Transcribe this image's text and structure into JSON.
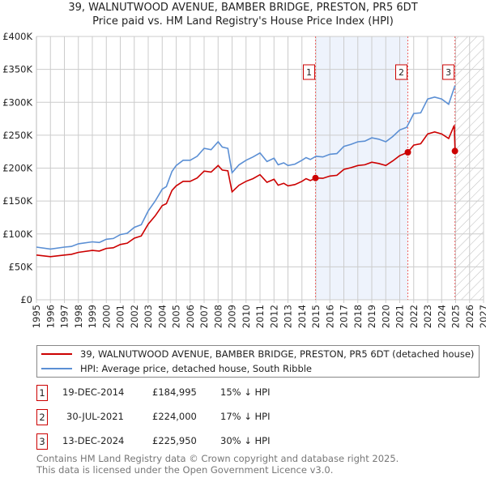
{
  "chart_data": {
    "type": "line",
    "title": "39, WALNUTWOOD AVENUE, BAMBER BRIDGE, PRESTON, PR5 6DT",
    "subtitle": "Price paid vs. HM Land Registry's House Price Index (HPI)",
    "xlim": [
      1995,
      2027
    ],
    "ylim": [
      0,
      400000
    ],
    "x_ticks": [
      "1995",
      "1996",
      "1997",
      "1998",
      "1999",
      "2000",
      "2001",
      "2002",
      "2003",
      "2004",
      "2005",
      "2006",
      "2007",
      "2008",
      "2009",
      "2010",
      "2011",
      "2012",
      "2013",
      "2014",
      "2015",
      "2016",
      "2017",
      "2018",
      "2019",
      "2020",
      "2021",
      "2022",
      "2023",
      "2024",
      "2025",
      "2026",
      "2027"
    ],
    "y_ticks": [
      {
        "v": 0,
        "label": "£0"
      },
      {
        "v": 50000,
        "label": "£50K"
      },
      {
        "v": 100000,
        "label": "£100K"
      },
      {
        "v": 150000,
        "label": "£150K"
      },
      {
        "v": 200000,
        "label": "£200K"
      },
      {
        "v": 250000,
        "label": "£250K"
      },
      {
        "v": 300000,
        "label": "£300K"
      },
      {
        "v": 350000,
        "label": "£350K"
      },
      {
        "v": 400000,
        "label": "£400K"
      }
    ],
    "grid": true,
    "shaded_range": [
      2014.97,
      2021.58
    ],
    "forecast_hatch_from": 2025.0,
    "series": [
      {
        "name": "39, WALNUTWOOD AVENUE, BAMBER BRIDGE, PRESTON, PR5 6DT (detached house)",
        "color": "#cc0000",
        "points": [
          [
            1995,
            68
          ],
          [
            1996,
            65.5
          ],
          [
            1997,
            68
          ],
          [
            1997.5,
            69
          ],
          [
            1998,
            72
          ],
          [
            1999,
            75
          ],
          [
            1999.5,
            74
          ],
          [
            2000,
            78
          ],
          [
            2000.5,
            79
          ],
          [
            2001,
            84
          ],
          [
            2001.5,
            86
          ],
          [
            2002,
            93.5
          ],
          [
            2002.5,
            97
          ],
          [
            2003,
            115
          ],
          [
            2003.5,
            127.5
          ],
          [
            2004,
            143
          ],
          [
            2004.3,
            146
          ],
          [
            2004.7,
            166
          ],
          [
            2005,
            173
          ],
          [
            2005.5,
            180
          ],
          [
            2006,
            180
          ],
          [
            2006.5,
            185
          ],
          [
            2007,
            195.5
          ],
          [
            2007.5,
            194
          ],
          [
            2008,
            204
          ],
          [
            2008.3,
            197
          ],
          [
            2008.7,
            196
          ],
          [
            2009,
            164
          ],
          [
            2009.5,
            174
          ],
          [
            2010,
            180
          ],
          [
            2010.5,
            184
          ],
          [
            2011,
            190
          ],
          [
            2011.5,
            178.5
          ],
          [
            2012,
            183
          ],
          [
            2012.3,
            174
          ],
          [
            2012.7,
            177
          ],
          [
            2013,
            173
          ],
          [
            2013.5,
            175
          ],
          [
            2014,
            180
          ],
          [
            2014.3,
            184
          ],
          [
            2014.6,
            181
          ],
          [
            2015,
            185
          ],
          [
            2015.5,
            184.5
          ],
          [
            2016,
            188
          ],
          [
            2016.5,
            189
          ],
          [
            2017,
            198
          ],
          [
            2017.5,
            200.6
          ],
          [
            2018,
            204
          ],
          [
            2018.5,
            205
          ],
          [
            2019,
            209
          ],
          [
            2019.5,
            207
          ],
          [
            2020,
            204
          ],
          [
            2020.5,
            211
          ],
          [
            2021,
            219
          ],
          [
            2021.58,
            224
          ],
          [
            2022,
            235
          ],
          [
            2022.5,
            237
          ],
          [
            2023,
            252
          ],
          [
            2023.5,
            255
          ],
          [
            2024,
            252
          ],
          [
            2024.5,
            245
          ],
          [
            2024.9,
            265
          ],
          [
            2024.96,
            226
          ]
        ]
      },
      {
        "name": "HPI: Average price, detached house, South Ribble",
        "color": "#5b8fd4",
        "points": [
          [
            1995,
            80
          ],
          [
            1996,
            77
          ],
          [
            1997,
            80
          ],
          [
            1997.5,
            81
          ],
          [
            1998,
            85
          ],
          [
            1999,
            88
          ],
          [
            1999.5,
            87
          ],
          [
            2000,
            92
          ],
          [
            2000.5,
            93
          ],
          [
            2001,
            99
          ],
          [
            2001.5,
            101
          ],
          [
            2002,
            110
          ],
          [
            2002.5,
            114
          ],
          [
            2003,
            135
          ],
          [
            2003.5,
            150
          ],
          [
            2004,
            168
          ],
          [
            2004.3,
            172
          ],
          [
            2004.7,
            195
          ],
          [
            2005,
            204
          ],
          [
            2005.5,
            212
          ],
          [
            2006,
            212
          ],
          [
            2006.5,
            218
          ],
          [
            2007,
            230
          ],
          [
            2007.5,
            228
          ],
          [
            2008,
            240
          ],
          [
            2008.3,
            232
          ],
          [
            2008.7,
            230
          ],
          [
            2009,
            193
          ],
          [
            2009.5,
            205
          ],
          [
            2010,
            212
          ],
          [
            2010.5,
            217
          ],
          [
            2011,
            223
          ],
          [
            2011.5,
            210
          ],
          [
            2012,
            215
          ],
          [
            2012.3,
            205
          ],
          [
            2012.7,
            208
          ],
          [
            2013,
            204
          ],
          [
            2013.5,
            206
          ],
          [
            2014,
            212
          ],
          [
            2014.3,
            216
          ],
          [
            2014.6,
            213
          ],
          [
            2015,
            218
          ],
          [
            2015.5,
            217
          ],
          [
            2016,
            221
          ],
          [
            2016.5,
            222
          ],
          [
            2017,
            233
          ],
          [
            2017.5,
            236
          ],
          [
            2018,
            240
          ],
          [
            2018.5,
            241
          ],
          [
            2019,
            246
          ],
          [
            2019.5,
            244
          ],
          [
            2020,
            240
          ],
          [
            2020.5,
            248
          ],
          [
            2021,
            258
          ],
          [
            2021.5,
            262
          ],
          [
            2022,
            283
          ],
          [
            2022.5,
            284
          ],
          [
            2023,
            305
          ],
          [
            2023.5,
            308
          ],
          [
            2024,
            305
          ],
          [
            2024.5,
            297
          ],
          [
            2024.95,
            325
          ]
        ]
      }
    ],
    "units_note": "series y values in £K",
    "sales": [
      {
        "n": "1",
        "x": 2014.97,
        "price": 184995,
        "date": "19-DEC-2014",
        "price_label": "£184,995",
        "hpi": "15% ↓ HPI"
      },
      {
        "n": "2",
        "x": 2021.58,
        "price": 224000,
        "date": "30-JUL-2021",
        "price_label": "£224,000",
        "hpi": "17% ↓ HPI"
      },
      {
        "n": "3",
        "x": 2024.95,
        "price": 225950,
        "date": "13-DEC-2024",
        "price_label": "£225,950",
        "hpi": "30% ↓ HPI"
      }
    ]
  },
  "footer": {
    "line1": "Contains HM Land Registry data © Crown copyright and database right 2025.",
    "line2": "This data is licensed under the Open Government Licence v3.0."
  }
}
